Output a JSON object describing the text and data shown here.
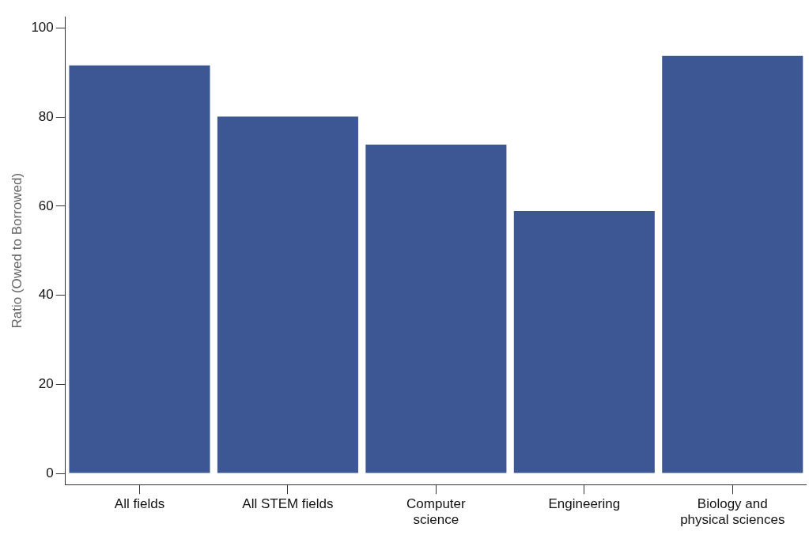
{
  "chart_data": {
    "type": "bar",
    "ylabel": "Ratio (Owed to Borrowed)",
    "categories": [
      "All fields",
      "All STEM fields",
      "Computer\nscience",
      "Engineering",
      "Biology and\nphysical sciences"
    ],
    "values": [
      91.6,
      80.1,
      73.8,
      58.9,
      93.7
    ],
    "color": "#3d5794",
    "ylim": [
      -2.5,
      102.5
    ],
    "yticks": [
      0,
      20,
      40,
      60,
      80,
      100
    ],
    "grid": false,
    "legend": false
  }
}
